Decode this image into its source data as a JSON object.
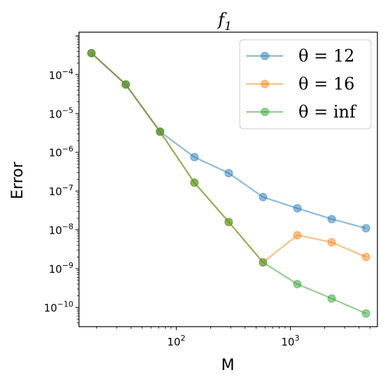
{
  "chart_data": {
    "type": "line",
    "title": "f",
    "title_subscript": "1",
    "xlabel": "M",
    "ylabel": "Error",
    "xscale": "log",
    "yscale": "log",
    "xlim": [
      14,
      5800
    ],
    "ylim": [
      3.2e-11,
      0.00125
    ],
    "x_tick_labels": [
      {
        "value": 100,
        "base": "10",
        "exp": "2"
      },
      {
        "value": 1000,
        "base": "10",
        "exp": "3"
      }
    ],
    "y_tick_labels": [
      {
        "value": 0.0001,
        "base": "10",
        "exp": "−4"
      },
      {
        "value": 1e-05,
        "base": "10",
        "exp": "−5"
      },
      {
        "value": 1e-06,
        "base": "10",
        "exp": "−6"
      },
      {
        "value": 1e-07,
        "base": "10",
        "exp": "−7"
      },
      {
        "value": 1e-08,
        "base": "10",
        "exp": "−8"
      },
      {
        "value": 1e-09,
        "base": "10",
        "exp": "−9"
      },
      {
        "value": 1e-10,
        "base": "10",
        "exp": "−10"
      }
    ],
    "legend_position": "top-right",
    "grid": false,
    "series": [
      {
        "name": "θ = 12",
        "color": "#1f77b4",
        "x": [
          18,
          36,
          72,
          144,
          288,
          576,
          1152,
          2304,
          4608
        ],
        "y": [
          0.00036,
          5.6e-05,
          3.4e-06,
          7.5e-07,
          2.9e-07,
          7e-08,
          3.6e-08,
          1.9e-08,
          1.1e-08
        ]
      },
      {
        "name": "θ = 16",
        "color": "#ff7f0e",
        "x": [
          18,
          36,
          72,
          144,
          288,
          576,
          1152,
          2304,
          4608
        ],
        "y": [
          0.00036,
          5.6e-05,
          3.4e-06,
          1.65e-07,
          1.6e-08,
          1.45e-09,
          7.3e-09,
          4.8e-09,
          2e-09
        ]
      },
      {
        "name": "θ = inf",
        "color": "#2ca02c",
        "x": [
          18,
          36,
          72,
          144,
          288,
          576,
          1152,
          2304,
          4608
        ],
        "y": [
          0.00036,
          5.6e-05,
          3.4e-06,
          1.65e-07,
          1.6e-08,
          1.45e-09,
          4e-10,
          1.7e-10,
          7e-11
        ]
      }
    ]
  }
}
